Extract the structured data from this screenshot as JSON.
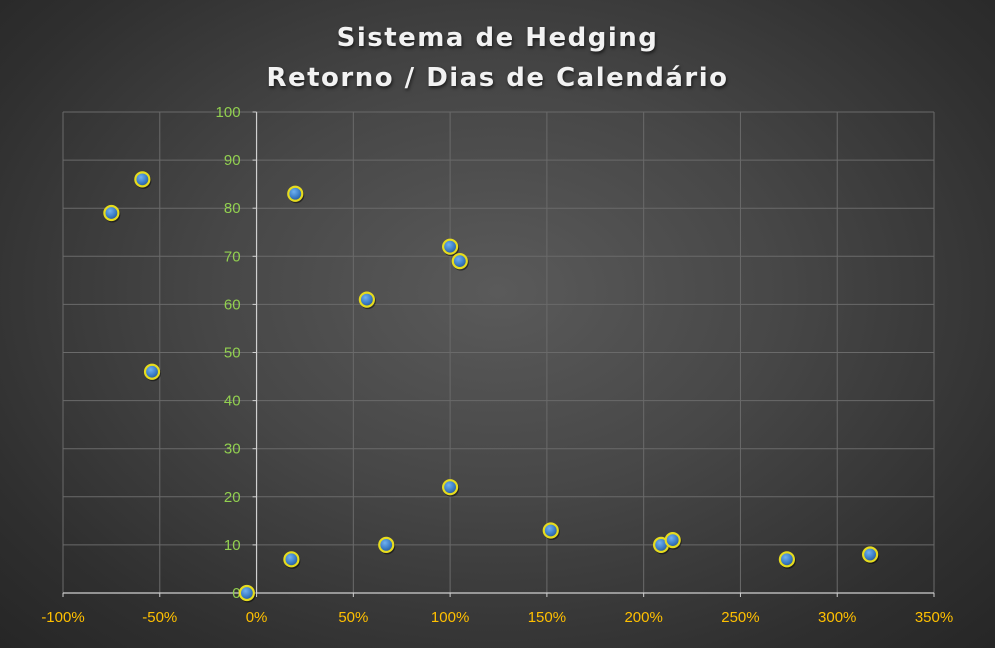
{
  "chart_data": {
    "type": "scatter",
    "title": "Sistema de Hedging",
    "subtitle": "Retorno / Dias de Calendário",
    "xlabel": "",
    "ylabel": "",
    "xlim": [
      -1.0,
      3.5
    ],
    "ylim": [
      0,
      100
    ],
    "x_ticks": [
      -1.0,
      -0.5,
      0,
      0.5,
      1.0,
      1.5,
      2.0,
      2.5,
      3.0,
      3.5
    ],
    "x_tick_labels": [
      "-100%",
      "-50%",
      "0%",
      "50%",
      "100%",
      "150%",
      "200%",
      "250%",
      "300%",
      "350%"
    ],
    "y_ticks": [
      0,
      10,
      20,
      30,
      40,
      50,
      60,
      70,
      80,
      90,
      100
    ],
    "y_tick_labels": [
      "0",
      "10",
      "20",
      "30",
      "40",
      "50",
      "60",
      "70",
      "80",
      "90",
      "100"
    ],
    "grid": true,
    "legend": "none",
    "colors": {
      "point_fill": "#3d7fc8",
      "point_ring": "#e6dc1e",
      "x_tick": "#ffc000",
      "y_tick": "#92d050",
      "grid": "#6a6a6a",
      "axis": "#d0d0d0"
    },
    "series": [
      {
        "points": [
          {
            "x": -0.75,
            "y": 79
          },
          {
            "x": -0.59,
            "y": 86
          },
          {
            "x": -0.54,
            "y": 46
          },
          {
            "x": -0.05,
            "y": 0
          },
          {
            "x": 0.18,
            "y": 7
          },
          {
            "x": 0.2,
            "y": 83
          },
          {
            "x": 0.57,
            "y": 61
          },
          {
            "x": 0.67,
            "y": 10
          },
          {
            "x": 1.0,
            "y": 72
          },
          {
            "x": 1.0,
            "y": 22
          },
          {
            "x": 1.05,
            "y": 69
          },
          {
            "x": 1.52,
            "y": 13
          },
          {
            "x": 2.09,
            "y": 10
          },
          {
            "x": 2.15,
            "y": 11
          },
          {
            "x": 2.74,
            "y": 7
          },
          {
            "x": 3.17,
            "y": 8
          }
        ]
      }
    ]
  }
}
